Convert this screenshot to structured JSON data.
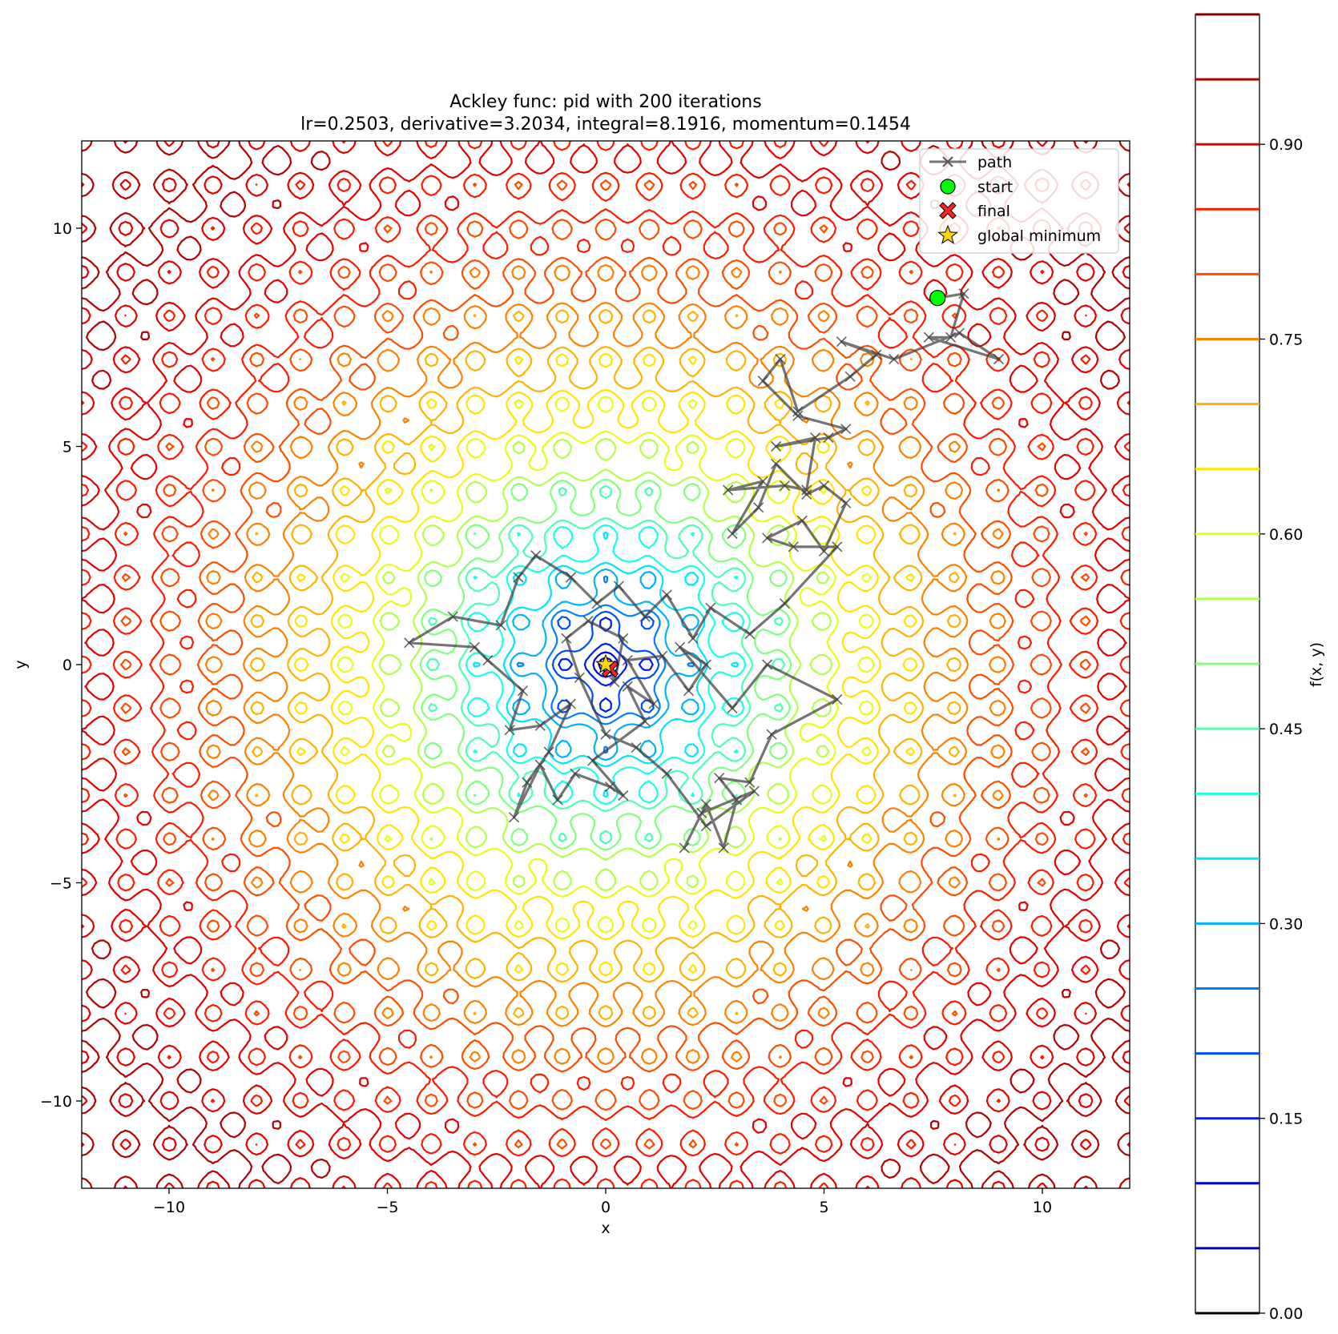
{
  "chart_data": {
    "type": "contour",
    "function": "Ackley",
    "title_lines": [
      "Ackley func: pid with 200 iterations",
      "lr=0.2503, derivative=3.2034, integral=8.1916, momentum=0.1454"
    ],
    "xlabel": "x",
    "ylabel": "y",
    "xlim": [
      -12,
      12
    ],
    "ylim": [
      -12,
      12
    ],
    "xticks": [
      -10,
      -5,
      0,
      5,
      10
    ],
    "yticks": [
      -10,
      -5,
      0,
      5,
      10
    ],
    "xtick_labels": [
      "−10",
      "−5",
      "0",
      "5",
      "10"
    ],
    "ytick_labels": [
      "−10",
      "−5",
      "0",
      "5",
      "10"
    ],
    "grid": false,
    "legend_position": "top-right",
    "legend": [
      {
        "label": "path",
        "marker": "x-line",
        "color": "#555555"
      },
      {
        "label": "start",
        "marker": "circle",
        "color": "#00ff00"
      },
      {
        "label": "final",
        "marker": "X",
        "color": "#ff2020"
      },
      {
        "label": "global minimum",
        "marker": "star",
        "color": "#ffd700"
      }
    ],
    "colorbar": {
      "label": "f(x, y)",
      "range": [
        0,
        1
      ],
      "ticks": [
        0.0,
        0.15,
        0.3,
        0.45,
        0.6,
        0.75,
        0.9
      ],
      "tick_labels": [
        "0.00",
        "0.15",
        "0.30",
        "0.45",
        "0.60",
        "0.75",
        "0.90"
      ],
      "levels": [
        0.0,
        0.05,
        0.1,
        0.15,
        0.2,
        0.25,
        0.3,
        0.35,
        0.4,
        0.45,
        0.5,
        0.55,
        0.6,
        0.65,
        0.7,
        0.75,
        0.8,
        0.85,
        0.9,
        0.95,
        1.0
      ],
      "colormap": "jet"
    },
    "start": [
      7.6,
      8.4
    ],
    "final": [
      0.1,
      -0.1
    ],
    "global_minimum": [
      0,
      0
    ],
    "path_color": "#404040",
    "path": [
      [
        7.6,
        8.4
      ],
      [
        8.2,
        8.5
      ],
      [
        7.9,
        7.5
      ],
      [
        7.4,
        7.5
      ],
      [
        9.0,
        7.0
      ],
      [
        8.1,
        7.6
      ],
      [
        6.6,
        7.0
      ],
      [
        5.4,
        7.4
      ],
      [
        6.2,
        7.1
      ],
      [
        5.6,
        6.6
      ],
      [
        4.4,
        5.8
      ],
      [
        4.0,
        7.0
      ],
      [
        3.6,
        6.5
      ],
      [
        4.4,
        5.7
      ],
      [
        5.5,
        5.4
      ],
      [
        5.1,
        5.2
      ],
      [
        3.9,
        5.0
      ],
      [
        4.8,
        5.2
      ],
      [
        4.6,
        4.0
      ],
      [
        4.1,
        4.1
      ],
      [
        2.8,
        4.0
      ],
      [
        3.6,
        4.2
      ],
      [
        2.9,
        3.0
      ],
      [
        3.5,
        3.6
      ],
      [
        3.9,
        4.6
      ],
      [
        4.6,
        3.9
      ],
      [
        5.0,
        4.1
      ],
      [
        5.5,
        3.7
      ],
      [
        5.0,
        2.6
      ],
      [
        4.5,
        3.3
      ],
      [
        3.7,
        2.9
      ],
      [
        4.3,
        2.7
      ],
      [
        5.3,
        2.7
      ],
      [
        4.1,
        1.4
      ],
      [
        3.3,
        0.7
      ],
      [
        2.4,
        1.3
      ],
      [
        2.0,
        0.6
      ],
      [
        1.4,
        1.6
      ],
      [
        0.9,
        1.1
      ],
      [
        0.3,
        1.8
      ],
      [
        -0.2,
        1.4
      ],
      [
        -0.8,
        2.0
      ],
      [
        -1.6,
        2.5
      ],
      [
        -2.0,
        2.0
      ],
      [
        -2.4,
        0.9
      ],
      [
        -3.5,
        1.1
      ],
      [
        -4.5,
        0.5
      ],
      [
        -3.0,
        0.4
      ],
      [
        -2.7,
        0.1
      ],
      [
        -1.9,
        -0.6
      ],
      [
        -2.2,
        -1.5
      ],
      [
        -1.5,
        -1.4
      ],
      [
        -0.8,
        -0.9
      ],
      [
        -1.3,
        -2.0
      ],
      [
        -1.8,
        -2.7
      ],
      [
        -2.1,
        -3.5
      ],
      [
        -1.5,
        -2.3
      ],
      [
        -1.1,
        -3.1
      ],
      [
        -0.7,
        -2.5
      ],
      [
        0.1,
        -2.8
      ],
      [
        0.4,
        -3.0
      ],
      [
        -0.3,
        -2.2
      ],
      [
        0.9,
        -1.3
      ],
      [
        0.5,
        -0.5
      ],
      [
        1.1,
        -0.9
      ],
      [
        0.5,
        0.1
      ],
      [
        1.3,
        0.2
      ],
      [
        1.9,
        -0.6
      ],
      [
        2.3,
        0.0
      ],
      [
        1.7,
        0.4
      ],
      [
        2.9,
        -1.0
      ],
      [
        3.7,
        0.0
      ],
      [
        5.3,
        -0.8
      ],
      [
        3.8,
        -1.6
      ],
      [
        3.3,
        -2.7
      ],
      [
        2.6,
        -2.6
      ],
      [
        3.0,
        -3.1
      ],
      [
        2.7,
        -4.2
      ],
      [
        2.3,
        -3.2
      ],
      [
        1.8,
        -4.2
      ],
      [
        2.2,
        -3.4
      ],
      [
        3.4,
        -2.9
      ],
      [
        2.3,
        -3.7
      ],
      [
        1.4,
        -2.5
      ],
      [
        0.7,
        -1.9
      ],
      [
        0.0,
        -1.6
      ],
      [
        -0.6,
        -0.3
      ],
      [
        -0.9,
        0.6
      ],
      [
        -0.4,
        1.0
      ],
      [
        0.4,
        0.6
      ],
      [
        0.2,
        -0.4
      ],
      [
        0.1,
        -0.1
      ]
    ]
  }
}
